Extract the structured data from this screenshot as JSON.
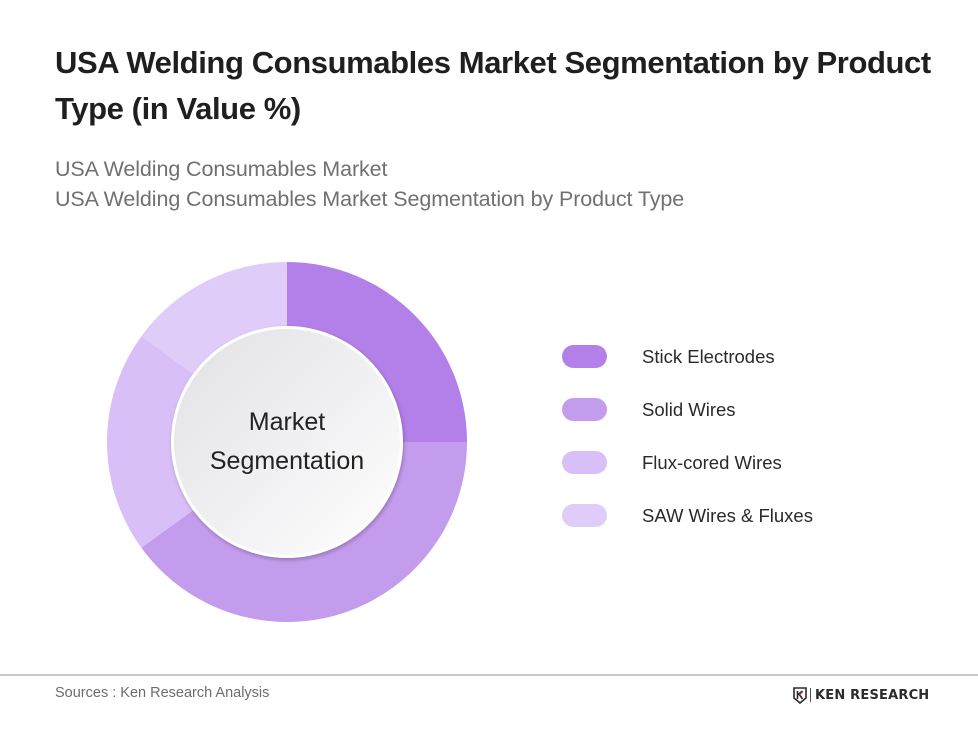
{
  "header": {
    "title": "USA Welding Consumables Market Segmentation by Product Type (in Value %)",
    "subtitle_line1": "USA Welding Consumables Market",
    "subtitle_line2": "USA Welding Consumables Market Segmentation by Product Type"
  },
  "chart": {
    "center_label_line1": "Market",
    "center_label_line2": "Segmentation"
  },
  "legend": [
    {
      "label": "Stick Electrodes",
      "color": "#b280e8"
    },
    {
      "label": "Solid Wires",
      "color": "#c49ced"
    },
    {
      "label": "Flux-cored Wires",
      "color": "#d9bff7"
    },
    {
      "label": "SAW Wires & Fluxes",
      "color": "#e0ccf8"
    }
  ],
  "footer": {
    "source": "Sources : Ken Research Analysis",
    "logo_text": "KEN RESEARCH",
    "logo_mark": "K"
  },
  "chart_data": {
    "type": "pie",
    "variant": "donut",
    "title": "USA Welding Consumables Market Segmentation by Product Type (in Value %)",
    "subtitle": "USA Welding Consumables Market Segmentation by Product Type",
    "center_label": "Market Segmentation",
    "categories": [
      "Stick Electrodes",
      "Solid Wires",
      "Flux-cored Wires",
      "SAW Wires & Fluxes"
    ],
    "values": [
      25,
      40,
      20,
      15
    ],
    "colors": [
      "#b280e8",
      "#c49ced",
      "#d9bff7",
      "#e0ccf8"
    ],
    "unit": "%",
    "start_angle": "12 o'clock, clockwise",
    "legend_position": "right",
    "source": "Ken Research Analysis"
  }
}
